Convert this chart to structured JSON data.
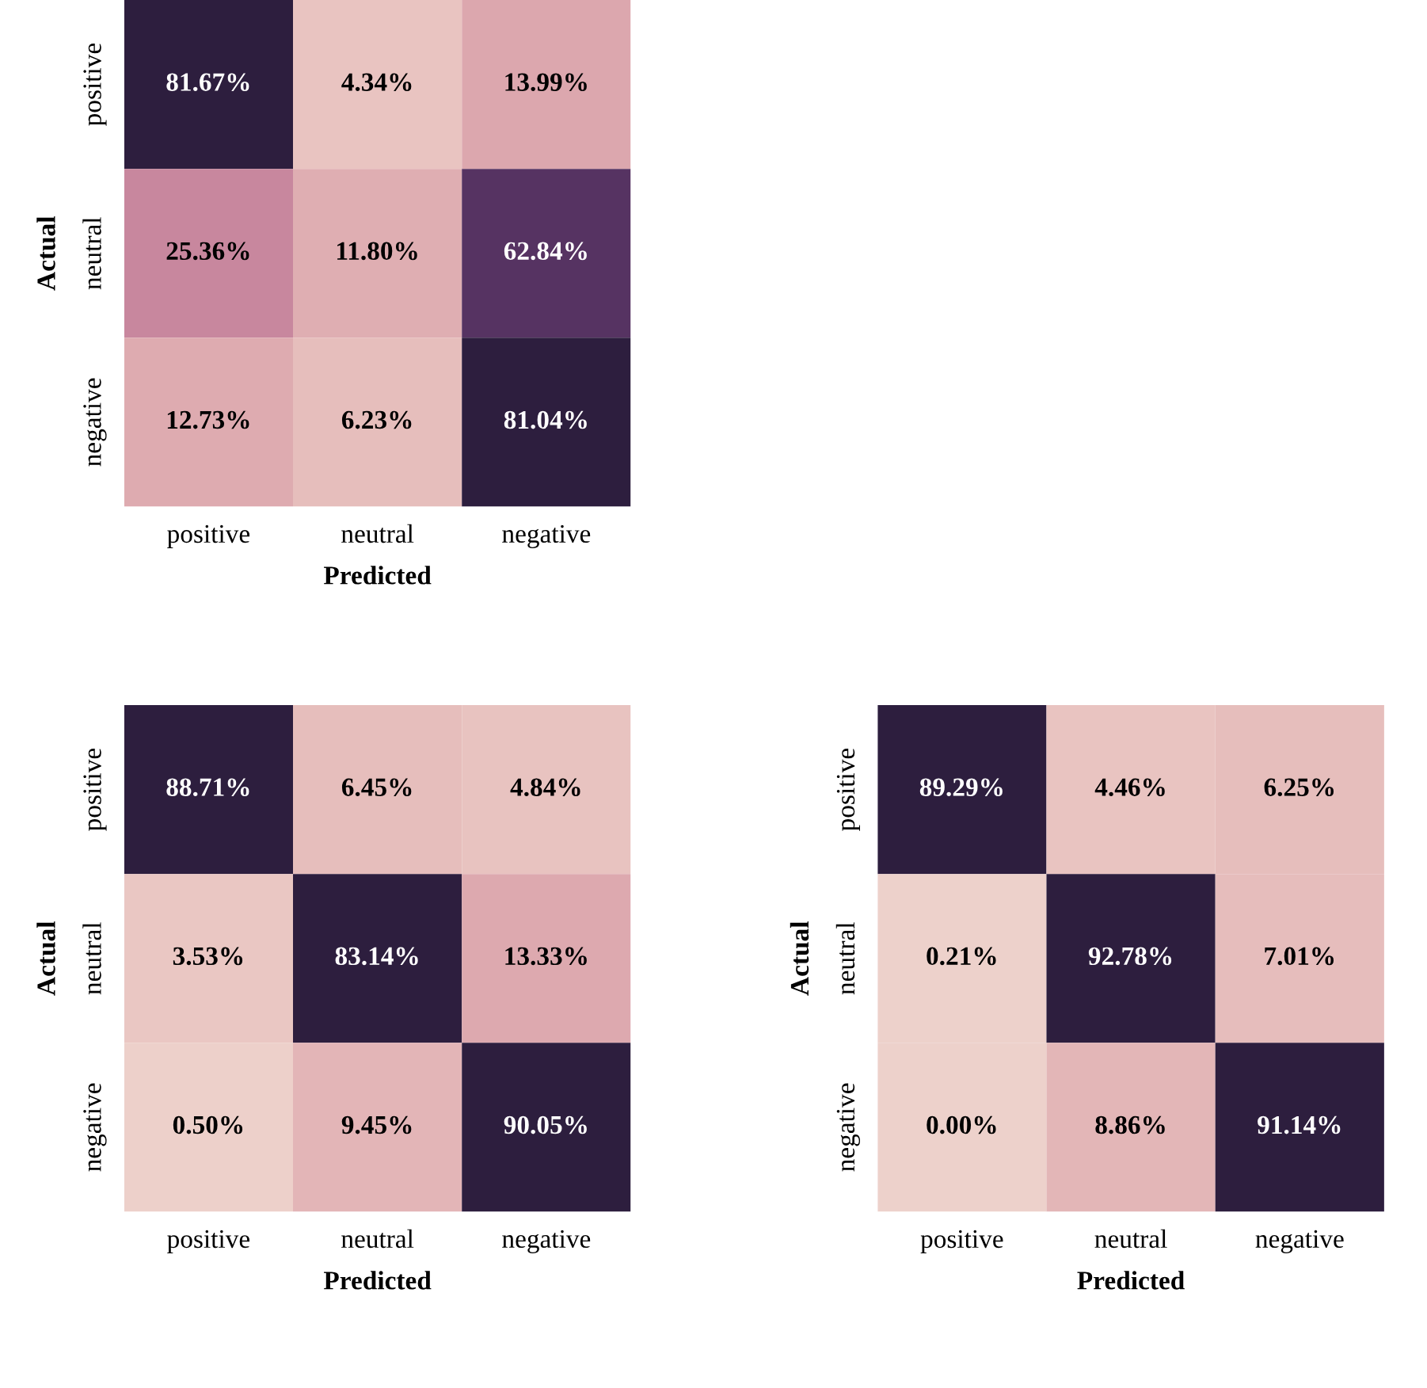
{
  "chart_data": [
    {
      "type": "heatmap",
      "xlabel": "Predicted",
      "ylabel": "Actual",
      "categories": [
        "positive",
        "neutral",
        "negative"
      ],
      "y_categories": [
        "positive",
        "neutral",
        "negative"
      ],
      "cells": [
        [
          81.67,
          4.34,
          13.99
        ],
        [
          25.36,
          11.8,
          62.84
        ],
        [
          12.73,
          6.23,
          81.04
        ]
      ],
      "cell_labels": [
        [
          "81.67%",
          "4.34%",
          "13.99%"
        ],
        [
          "25.36%",
          "11.80%",
          "62.84%"
        ],
        [
          "12.73%",
          "6.23%",
          "81.04%"
        ]
      ]
    },
    {
      "type": "heatmap",
      "xlabel": "Predicted",
      "ylabel": "Actual",
      "categories": [
        "positive",
        "neutral",
        "negative"
      ],
      "y_categories": [
        "positive",
        "neutral",
        "negative"
      ],
      "cells": [
        [
          88.71,
          6.45,
          4.84
        ],
        [
          3.53,
          83.14,
          13.33
        ],
        [
          0.5,
          9.45,
          90.05
        ]
      ],
      "cell_labels": [
        [
          "88.71%",
          "6.45%",
          "4.84%"
        ],
        [
          "3.53%",
          "83.14%",
          "13.33%"
        ],
        [
          "0.50%",
          "9.45%",
          "90.05%"
        ]
      ]
    },
    {
      "type": "heatmap",
      "xlabel": "Predicted",
      "ylabel": "Actual",
      "categories": [
        "positive",
        "neutral",
        "negative"
      ],
      "y_categories": [
        "positive",
        "neutral",
        "negative"
      ],
      "cells": [
        [
          89.29,
          4.46,
          6.25
        ],
        [
          0.21,
          92.78,
          7.01
        ],
        [
          0.0,
          8.86,
          91.14
        ]
      ],
      "cell_labels": [
        [
          "89.29%",
          "4.46%",
          "6.25%"
        ],
        [
          "0.21%",
          "92.78%",
          "7.01%"
        ],
        [
          "0.00%",
          "8.86%",
          "91.14%"
        ]
      ]
    }
  ]
}
